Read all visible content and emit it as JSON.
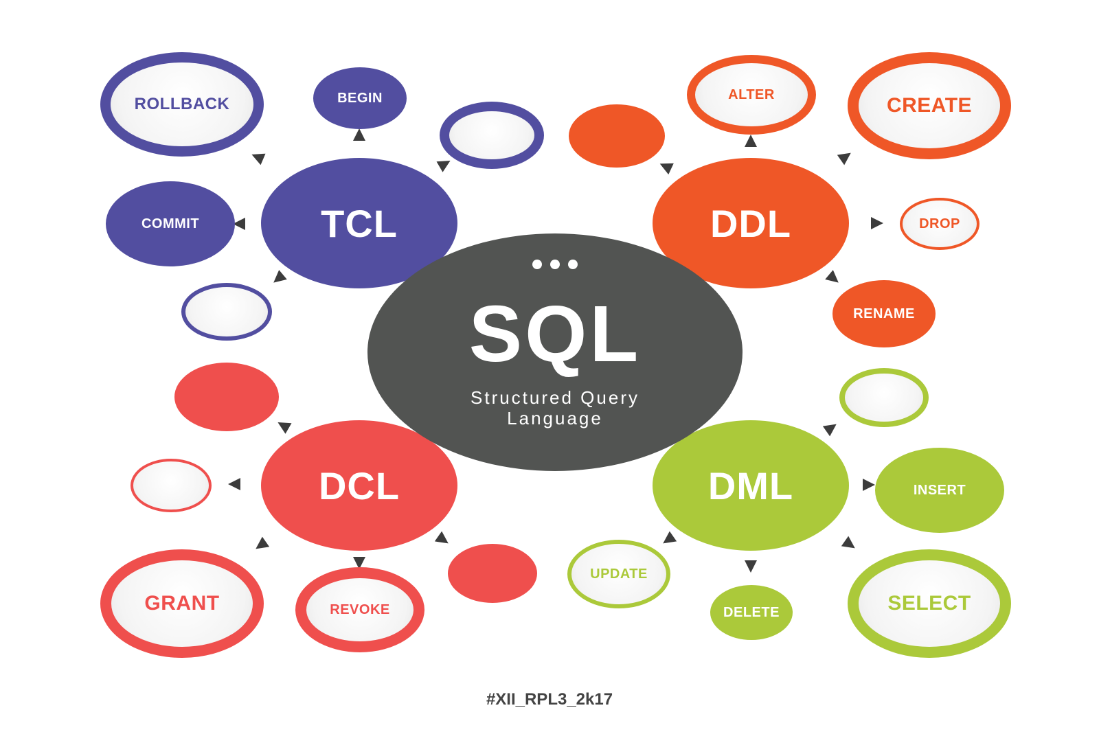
{
  "center": {
    "title": "SQL",
    "subtitle_line1": "Structured Query",
    "subtitle_line2": "Language"
  },
  "groups": {
    "tcl": {
      "label": "TCL",
      "color": "#524ea0",
      "commands": [
        "ROLLBACK",
        "BEGIN",
        "COMMIT"
      ]
    },
    "ddl": {
      "label": "DDL",
      "color": "#ef5727",
      "commands": [
        "ALTER",
        "CREATE",
        "DROP",
        "RENAME"
      ]
    },
    "dcl": {
      "label": "DCL",
      "color": "#ef4f4d",
      "commands": [
        "GRANT",
        "REVOKE"
      ]
    },
    "dml": {
      "label": "DML",
      "color": "#abc93a",
      "commands": [
        "INSERT",
        "UPDATE",
        "DELETE",
        "SELECT"
      ]
    }
  },
  "arrow_color": "#3c3c3c",
  "footer": "#XII_RPL3_2k17"
}
